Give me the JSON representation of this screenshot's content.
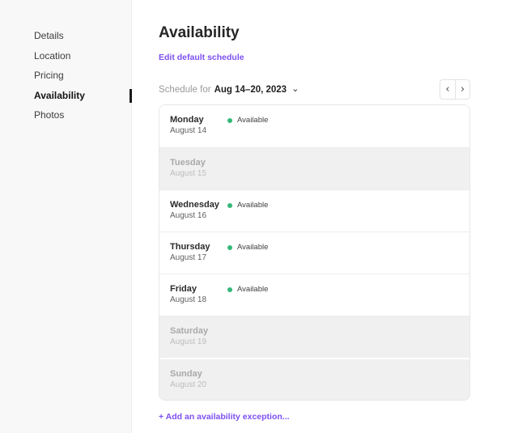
{
  "sidebar": {
    "items": [
      {
        "label": "Details",
        "active": false
      },
      {
        "label": "Location",
        "active": false
      },
      {
        "label": "Pricing",
        "active": false
      },
      {
        "label": "Availability",
        "active": true
      },
      {
        "label": "Photos",
        "active": false
      }
    ]
  },
  "header": {
    "title": "Availability",
    "edit_link": "Edit default schedule"
  },
  "schedule_bar": {
    "label": "Schedule for",
    "range": "Aug 14–20, 2023"
  },
  "icons": {
    "chevron_down": "⌄",
    "chevron_left": "‹",
    "chevron_right": "›"
  },
  "week": {
    "days": [
      {
        "day": "Monday",
        "date": "August 14",
        "available": true,
        "status": "Available"
      },
      {
        "day": "Tuesday",
        "date": "August 15",
        "available": false,
        "status": ""
      },
      {
        "day": "Wednesday",
        "date": "August 16",
        "available": true,
        "status": "Available"
      },
      {
        "day": "Thursday",
        "date": "August 17",
        "available": true,
        "status": "Available"
      },
      {
        "day": "Friday",
        "date": "August 18",
        "available": true,
        "status": "Available"
      },
      {
        "day": "Saturday",
        "date": "August 19",
        "available": false,
        "status": ""
      },
      {
        "day": "Sunday",
        "date": "August 20",
        "available": false,
        "status": ""
      }
    ]
  },
  "footer": {
    "add_exception_link": "+ Add an availability exception..."
  },
  "colors": {
    "accent": "#7d4ff0",
    "status_green": "#34b877",
    "sidebar_bg": "#f8f8f8",
    "unavailable_row_bg": "#f0f0f0"
  }
}
